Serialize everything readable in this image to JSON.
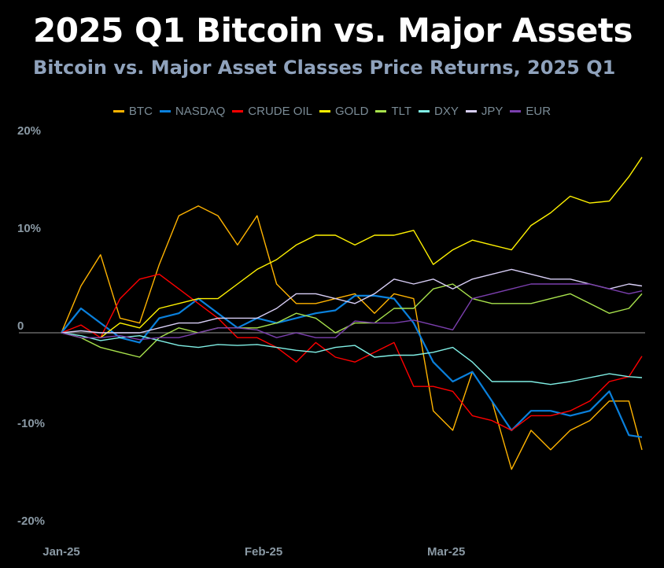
{
  "chart_data": {
    "type": "line",
    "title": "2025 Q1 Bitcoin vs. Major Assets",
    "subtitle": "Bitcoin vs. Major Asset Classes Price Returns, 2025 Q1",
    "xlabel": "",
    "ylabel": "",
    "ylim": [
      -20,
      20
    ],
    "y_ticks": [
      {
        "value": 20,
        "label": "20%"
      },
      {
        "value": 10,
        "label": "10%"
      },
      {
        "value": 0,
        "label": "0"
      },
      {
        "value": -10,
        "label": "-10%"
      },
      {
        "value": -20,
        "label": "-20%"
      }
    ],
    "x_ticks": [
      {
        "date": "2025-01-01",
        "label": "Jan-25"
      },
      {
        "date": "2025-02-01",
        "label": "Feb-25"
      },
      {
        "date": "2025-03-01",
        "label": "Mar-25"
      }
    ],
    "grid": false,
    "zero_line": true,
    "legend_position": "top",
    "x": [
      "2025-01-01",
      "2025-01-04",
      "2025-01-07",
      "2025-01-10",
      "2025-01-13",
      "2025-01-16",
      "2025-01-19",
      "2025-01-22",
      "2025-01-25",
      "2025-01-28",
      "2025-01-31",
      "2025-02-03",
      "2025-02-06",
      "2025-02-09",
      "2025-02-12",
      "2025-02-15",
      "2025-02-18",
      "2025-02-21",
      "2025-02-24",
      "2025-02-27",
      "2025-03-02",
      "2025-03-05",
      "2025-03-08",
      "2025-03-11",
      "2025-03-14",
      "2025-03-17",
      "2025-03-20",
      "2025-03-23",
      "2025-03-26",
      "2025-03-29",
      "2025-03-31"
    ],
    "series": [
      {
        "name": "BTC",
        "color": "#FFB300",
        "values": [
          0,
          4.8,
          8,
          1.5,
          1,
          7,
          12,
          13,
          12,
          9,
          12,
          5,
          3,
          3,
          3.5,
          4,
          2,
          4,
          3.5,
          -8,
          -10,
          -4,
          -7,
          -14,
          -10,
          -12,
          -10,
          -9,
          -7,
          -7,
          -12
        ]
      },
      {
        "name": "NASDAQ",
        "color": "#0A80DC",
        "values": [
          0,
          2.5,
          1,
          -0.5,
          -1,
          1.5,
          2,
          3.5,
          2,
          0.5,
          1.5,
          1,
          1.5,
          2,
          2.3,
          3.8,
          3.8,
          3.5,
          1,
          -3,
          -5,
          -4,
          -7,
          -10,
          -8,
          -8,
          -8.5,
          -8,
          -6,
          -10.5,
          -10.7
        ]
      },
      {
        "name": "CRUDE OIL",
        "color": "#FF0000",
        "values": [
          0,
          0.8,
          -0.5,
          3.5,
          5.5,
          6,
          4.5,
          3,
          1.5,
          -0.5,
          -0.5,
          -1.5,
          -3,
          -1,
          -2.5,
          -3,
          -2,
          -1,
          -5.5,
          -5.5,
          -6,
          -8.5,
          -9,
          -10,
          -8.5,
          -8.5,
          -8,
          -7,
          -5,
          -4.5,
          -2.4
        ]
      },
      {
        "name": "GOLD",
        "color": "#FFF200",
        "values": [
          0,
          -0.5,
          -0.5,
          1,
          0.5,
          2.5,
          3,
          3.5,
          3.5,
          5,
          6.5,
          7.5,
          9,
          10,
          10,
          9,
          10,
          10,
          10.5,
          7,
          8.5,
          9.5,
          9,
          8.5,
          11,
          12.3,
          14,
          13.3,
          13.5,
          16,
          18
        ]
      },
      {
        "name": "TLT",
        "color": "#A8E24C",
        "values": [
          0,
          -0.5,
          -1.5,
          -2,
          -2.5,
          -0.5,
          0.5,
          0,
          0.5,
          0.5,
          0.5,
          1,
          2,
          1.5,
          0,
          1,
          1,
          2.5,
          2.5,
          4.5,
          5,
          3.5,
          3,
          3,
          3,
          3.5,
          4,
          3,
          2,
          2.5,
          4
        ]
      },
      {
        "name": "DXY",
        "color": "#80F0E6",
        "values": [
          0,
          -0.3,
          -0.8,
          -0.5,
          -0.3,
          -0.8,
          -1.3,
          -1.5,
          -1.2,
          -1.3,
          -1.2,
          -1.5,
          -1.8,
          -2,
          -1.5,
          -1.3,
          -2.5,
          -2.3,
          -2.3,
          -2,
          -1.5,
          -3,
          -5,
          -5,
          -5,
          -5.3,
          -5,
          -4.6,
          -4.2,
          -4.5,
          -4.6
        ]
      },
      {
        "name": "JPY",
        "color": "#D9CFF7",
        "values": [
          0,
          0.2,
          0,
          0,
          0,
          0.5,
          1,
          1,
          1.5,
          1.5,
          1.5,
          2.5,
          4,
          4,
          3.5,
          3,
          4,
          5.5,
          5,
          5.5,
          4.5,
          5.5,
          6,
          6.5,
          6,
          5.5,
          5.5,
          5,
          4.5,
          5,
          4.8
        ]
      },
      {
        "name": "EUR",
        "color": "#7B3FAE",
        "values": [
          0,
          -0.5,
          -0.5,
          -0.3,
          -0.7,
          -0.5,
          -0.5,
          0,
          0.5,
          0.5,
          0.3,
          -0.5,
          0,
          -0.5,
          -0.5,
          1.2,
          1,
          1,
          1.3,
          0.8,
          0.3,
          3.5,
          4,
          4.5,
          5,
          5,
          5,
          5,
          4.5,
          4,
          4.3
        ]
      }
    ]
  }
}
